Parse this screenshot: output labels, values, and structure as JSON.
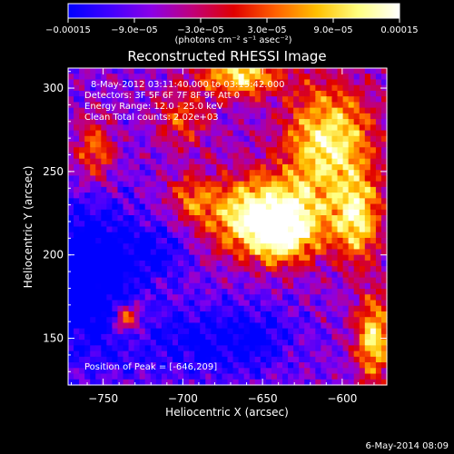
{
  "chart_data": {
    "type": "heatmap",
    "title": "Reconstructed RHESSI Image",
    "xlabel": "Heliocentric X (arcsec)",
    "ylabel": "Heliocentric Y (arcsec)",
    "xlim": [
      -772,
      -572
    ],
    "ylim": [
      122,
      312
    ],
    "x_ticks": [
      -750,
      -700,
      -650,
      -600
    ],
    "y_ticks": [
      150,
      200,
      250,
      300
    ],
    "x_tick_labels": [
      "−750",
      "−700",
      "−650",
      "−600"
    ],
    "y_tick_labels": [
      "150",
      "200",
      "250",
      "300"
    ],
    "colorbar": {
      "min": -0.00015,
      "max": 0.00015,
      "ticks": [
        -0.00015,
        -9e-05,
        -3e-05,
        3e-05,
        9e-05,
        0.00015
      ],
      "tick_labels": [
        "−0.00015",
        "−9.0e−05",
        "−3.0e−05",
        "3.0e−05",
        "9.0e−05",
        "0.00015"
      ],
      "colors": [
        "#0000ff",
        "#4000ff",
        "#8a00e8",
        "#c0007a",
        "#e00000",
        "#ff6000",
        "#ffc000",
        "#ffff80",
        "#ffffff"
      ],
      "unit_label": "(photons cm⁻² s⁻¹ asec⁻²)"
    },
    "annotations": {
      "time_range": "8-May-2012 03:11:40.000 to 03:15:42.000",
      "detectors": "Detectors: 3F 5F 6F 7F 8F 9F  Att 0",
      "energy": "Energy Range: 12.0 - 25.0 keV",
      "method": "Clean    Total counts: 2.02e+03",
      "peak": "Position of Peak = [-646,209]"
    },
    "peak": [
      -646,
      209
    ],
    "sources": [
      {
        "x": -650,
        "y": 225,
        "sx": 28,
        "sy": 16,
        "amp": 1.0
      },
      {
        "x": -638,
        "y": 210,
        "sx": 16,
        "sy": 12,
        "amp": 0.65
      },
      {
        "x": -608,
        "y": 268,
        "sx": 20,
        "sy": 24,
        "amp": 0.9
      },
      {
        "x": -590,
        "y": 220,
        "sx": 10,
        "sy": 18,
        "amp": 0.75
      },
      {
        "x": -664,
        "y": 308,
        "sx": 18,
        "sy": 9,
        "amp": 0.85
      },
      {
        "x": -700,
        "y": 282,
        "sx": 12,
        "sy": 12,
        "amp": 0.45
      },
      {
        "x": -755,
        "y": 262,
        "sx": 9,
        "sy": 14,
        "amp": 0.55
      },
      {
        "x": -735,
        "y": 162,
        "sx": 7,
        "sy": 7,
        "amp": 0.7
      },
      {
        "x": -580,
        "y": 150,
        "sx": 8,
        "sy": 18,
        "amp": 0.85
      },
      {
        "x": -696,
        "y": 235,
        "sx": 9,
        "sy": 9,
        "amp": 0.35
      }
    ],
    "negative_regions": [
      {
        "x": -758,
        "y": 185,
        "sx": 22,
        "sy": 34,
        "amp": -0.6
      },
      {
        "x": -690,
        "y": 148,
        "sx": 26,
        "sy": 16,
        "amp": -0.35
      },
      {
        "x": -650,
        "y": 150,
        "sx": 18,
        "sy": 14,
        "amp": -0.25
      },
      {
        "x": -715,
        "y": 203,
        "sx": 16,
        "sy": 12,
        "amp": -0.3
      }
    ]
  },
  "footer_date": "6-May-2014 08:09"
}
